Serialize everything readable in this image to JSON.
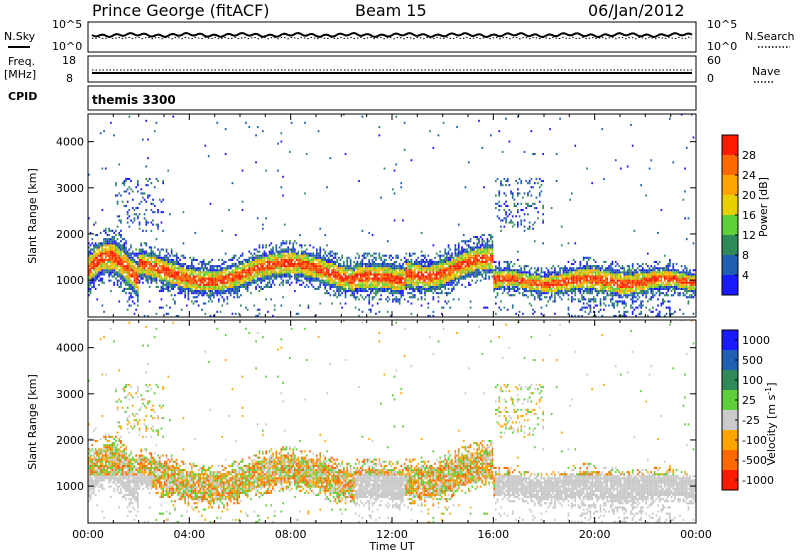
{
  "header": {
    "station": "Prince George (fitACF)",
    "beam": "Beam 15",
    "date": "06/Jan/2012"
  },
  "strips": {
    "nsky_label": "N.Sky",
    "nsky_ticks": [
      "10^5",
      "10^0"
    ],
    "nsearch_label": "N.Search",
    "nsearch_ticks": [
      "10^5",
      "10^0"
    ],
    "freq_label": "Freq.",
    "freq_unit": "[MHz]",
    "freq_ticks": [
      "18",
      "8"
    ],
    "nave_label": "Nave",
    "nave_ticks": [
      "60",
      "0"
    ],
    "cpid_label": "CPID",
    "cpid_value": "themis 3300"
  },
  "colors": {
    "power": [
      "#1a1aff",
      "#1f5fb4",
      "#2f8a5a",
      "#5fcf3a",
      "#e8d000",
      "#ffa500",
      "#ff6a00",
      "#ff1a00"
    ],
    "velocity": [
      "#1a1aff",
      "#1f5fb4",
      "#2f8a5a",
      "#5fcf3a",
      "#cacaca",
      "#ffa500",
      "#ff6a00",
      "#ff1a00"
    ],
    "grey_scatter": "#c8c8c8"
  },
  "chart_data": [
    {
      "type": "heatmap",
      "quantity": "power",
      "xlabel": "",
      "ylabel": "Slant Range [km]",
      "x_ticks": [
        "00:00",
        "04:00",
        "08:00",
        "12:00",
        "16:00",
        "20:00",
        "00:00"
      ],
      "xlim_hours": [
        0,
        24
      ],
      "y_ticks": [
        1000,
        2000,
        3000,
        4000
      ],
      "ylim": [
        200,
        4600
      ],
      "colorbar_label": "Power [dB]",
      "colorbar_ticks": [
        4,
        8,
        12,
        16,
        20,
        24,
        28
      ],
      "colorbar_range": [
        0,
        32
      ]
    },
    {
      "type": "heatmap",
      "quantity": "velocity",
      "xlabel": "Time UT",
      "ylabel": "Slant Range [km]",
      "x_ticks": [
        "00:00",
        "04:00",
        "08:00",
        "12:00",
        "16:00",
        "20:00",
        "00:00"
      ],
      "xlim_hours": [
        0,
        24
      ],
      "y_ticks": [
        1000,
        2000,
        3000,
        4000
      ],
      "ylim": [
        200,
        4600
      ],
      "colorbar_label": "Velocity [m s^-1]",
      "colorbar_ticks": [
        "1000",
        "500",
        "100",
        "25",
        "-25",
        "-100",
        "-500",
        "-1000"
      ]
    }
  ]
}
